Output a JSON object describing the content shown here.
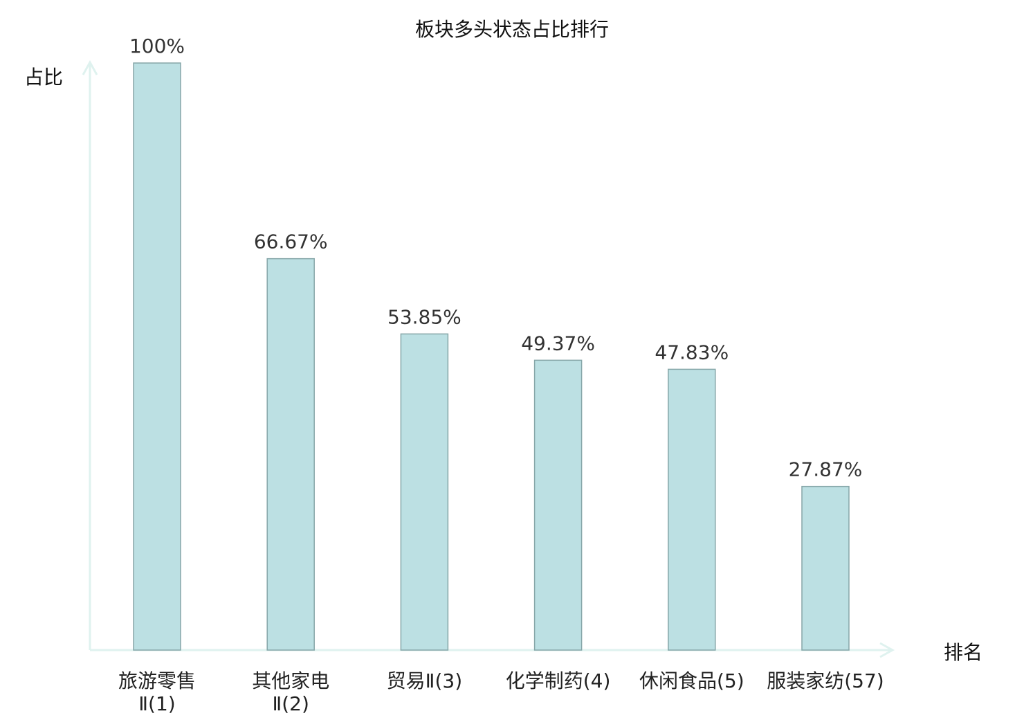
{
  "chart_data": {
    "type": "bar",
    "title": "板块多头状态占比排行",
    "ylabel": "占比",
    "xlabel": "排名",
    "ylim": [
      0,
      100
    ],
    "grid": false,
    "categories": [
      [
        "旅游零售",
        "Ⅱ(1)"
      ],
      [
        "其他家电",
        "Ⅱ(2)"
      ],
      [
        "贸易Ⅱ(3)"
      ],
      [
        "化学制药(4)"
      ],
      [
        "休闲食品(5)"
      ],
      [
        "服装家纺(57)"
      ]
    ],
    "values": [
      100,
      66.67,
      53.85,
      49.37,
      47.83,
      27.87
    ],
    "value_labels": [
      "100%",
      "66.67%",
      "53.85%",
      "49.37%",
      "47.83%",
      "27.87%"
    ],
    "highlight_index": 5,
    "colors": {
      "bar_fill": "#bce0e3",
      "bar_stroke": "#86a6a8",
      "axis": "#dff2ef",
      "highlight": "#e8141e",
      "text": "#222222"
    }
  }
}
